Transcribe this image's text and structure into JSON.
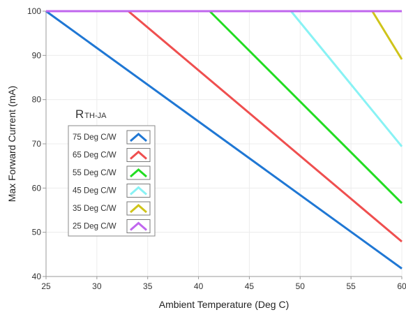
{
  "chart_data": {
    "type": "line",
    "title": "",
    "xlabel": "Ambient Temperature (Deg C)",
    "ylabel": "Max Forward Current (mA)",
    "xlim": [
      25,
      60
    ],
    "ylim": [
      40,
      100
    ],
    "xticks": [
      25,
      30,
      35,
      40,
      45,
      50,
      55,
      60
    ],
    "yticks": [
      40,
      50,
      60,
      70,
      80,
      90,
      100
    ],
    "grid": true,
    "legend": {
      "title": "R",
      "title_subscript": "TH-JA",
      "placement": "center-left"
    },
    "series": [
      {
        "name": "75 Deg C/W",
        "color": "#1f77d4",
        "points": [
          [
            25,
            100
          ],
          [
            60,
            41.8
          ]
        ]
      },
      {
        "name": "65 Deg C/W",
        "color": "#ef4f4f",
        "points": [
          [
            25,
            100
          ],
          [
            33.1,
            100
          ],
          [
            60,
            47.9
          ]
        ]
      },
      {
        "name": "55 Deg C/W",
        "color": "#22dd22",
        "points": [
          [
            25,
            100
          ],
          [
            41.1,
            100
          ],
          [
            60,
            56.6
          ]
        ]
      },
      {
        "name": "45 Deg C/W",
        "color": "#88f2f4",
        "points": [
          [
            25,
            100
          ],
          [
            49.1,
            100
          ],
          [
            60,
            69.4
          ]
        ]
      },
      {
        "name": "35 Deg C/W",
        "color": "#cfc41a",
        "points": [
          [
            25,
            100
          ],
          [
            57.1,
            100
          ],
          [
            60,
            89.1
          ]
        ]
      },
      {
        "name": "25 Deg C/W",
        "color": "#c066ee",
        "points": [
          [
            25,
            100
          ],
          [
            60,
            100
          ]
        ]
      }
    ]
  }
}
